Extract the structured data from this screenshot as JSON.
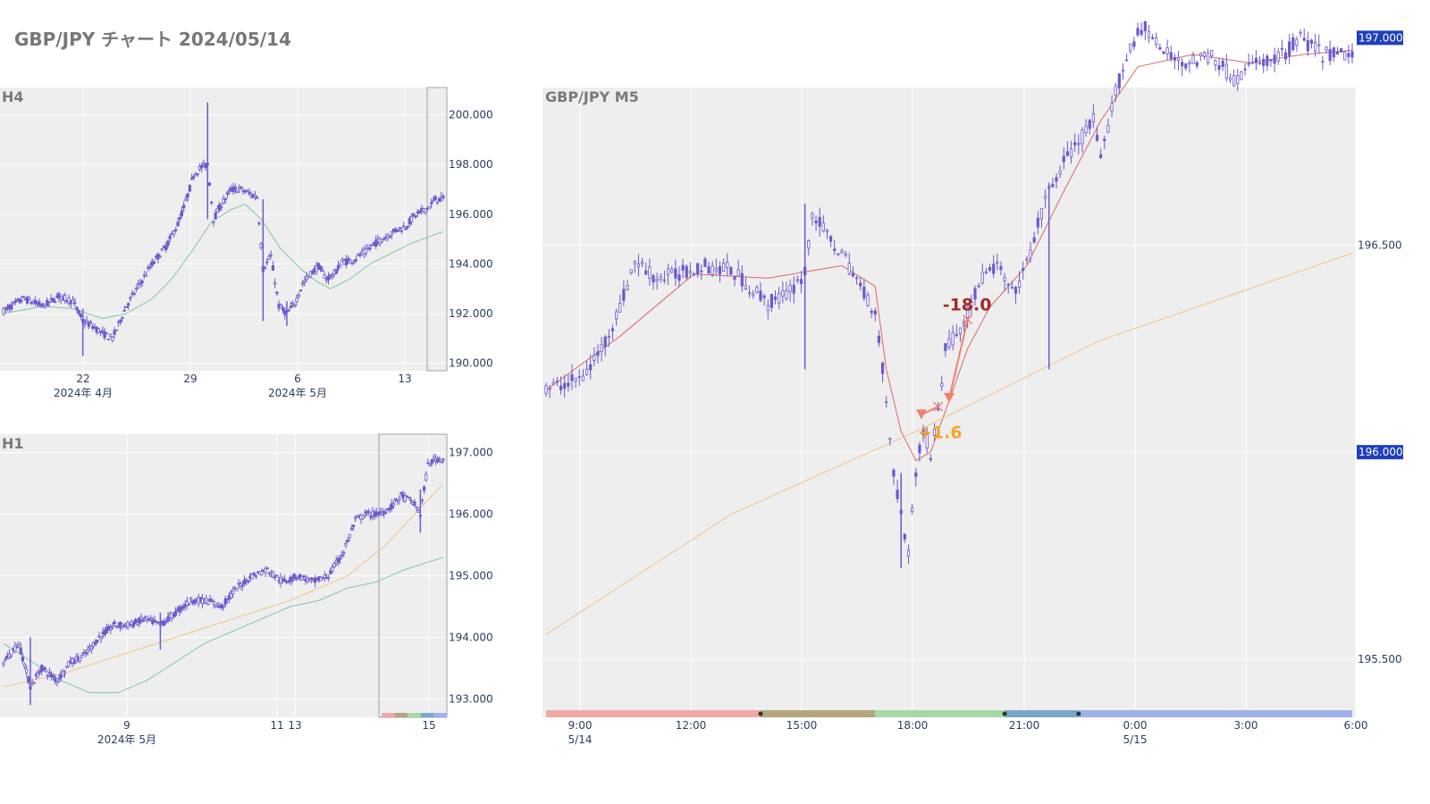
{
  "page": {
    "title": "GBP/JPY チャート 2024/05/14"
  },
  "colors": {
    "candle": "#6a5acd",
    "plot_bg": "#eeeeee",
    "grid": "#ffffff",
    "badge": "#1f3fbf",
    "ma_red": "#e06666",
    "ma_green": "#7fc6a4",
    "ma_orange": "#f2c28a",
    "trade_marker": "#f08070",
    "loss_text": "#a52a2a",
    "profit_text": "#f5a623"
  },
  "chart_data": [
    {
      "name": "h4-panel",
      "type": "candlestick",
      "title": "H4",
      "ylim": [
        189.7,
        201.1
      ],
      "y_ticks": [
        "190.000",
        "192.000",
        "194.000",
        "196.000",
        "198.000",
        "200.000"
      ],
      "x_ticks": [
        {
          "label": "22",
          "sub": "2024年 4月"
        },
        {
          "label": "29",
          "sub": ""
        },
        {
          "label": "6",
          "sub": "2024年 5月"
        },
        {
          "label": "13",
          "sub": ""
        }
      ],
      "path": [
        [
          0,
          192.1
        ],
        [
          10,
          192.6
        ],
        [
          20,
          192.3
        ],
        [
          28,
          192.7
        ],
        [
          35,
          192.5
        ],
        [
          40,
          191.7
        ],
        [
          45,
          191.5
        ],
        [
          50,
          191.2
        ],
        [
          55,
          191.0
        ],
        [
          62,
          192.3
        ],
        [
          68,
          193.1
        ],
        [
          75,
          194.0
        ],
        [
          82,
          194.7
        ],
        [
          88,
          195.6
        ],
        [
          92,
          196.5
        ],
        [
          96,
          197.6
        ],
        [
          100,
          197.9
        ],
        [
          103,
          198.0
        ],
        [
          106,
          195.8
        ],
        [
          110,
          196.4
        ],
        [
          115,
          197.0
        ],
        [
          120,
          197.0
        ],
        [
          125,
          196.8
        ],
        [
          128,
          196.7
        ],
        [
          131,
          193.8
        ],
        [
          135,
          194.3
        ],
        [
          139,
          192.3
        ],
        [
          143,
          192.0
        ],
        [
          147,
          192.4
        ],
        [
          151,
          193.2
        ],
        [
          155,
          193.6
        ],
        [
          159,
          193.9
        ],
        [
          163,
          193.4
        ],
        [
          167,
          193.6
        ],
        [
          171,
          194.1
        ],
        [
          175,
          194.1
        ],
        [
          179,
          194.3
        ],
        [
          183,
          194.5
        ],
        [
          187,
          194.8
        ],
        [
          191,
          195.0
        ],
        [
          195,
          195.2
        ],
        [
          199,
          195.4
        ],
        [
          203,
          195.5
        ],
        [
          207,
          195.9
        ],
        [
          211,
          196.1
        ],
        [
          215,
          196.3
        ],
        [
          218,
          196.6
        ],
        [
          222,
          196.6
        ]
      ],
      "spikes": [
        {
          "x": 103,
          "low": 195.8,
          "high": 200.5
        },
        {
          "x": 131,
          "low": 191.7,
          "high": 196.6
        },
        {
          "x": 40,
          "low": 190.3,
          "high": 192.2
        },
        {
          "x": 143,
          "low": 191.5,
          "high": 192.5
        }
      ],
      "ma": [
        {
          "color_key": "ma_green",
          "values": [
            [
              0,
              192.0
            ],
            [
              20,
              192.3
            ],
            [
              35,
              192.2
            ],
            [
              50,
              191.8
            ],
            [
              62,
              192.0
            ],
            [
              75,
              192.6
            ],
            [
              85,
              193.4
            ],
            [
              95,
              194.5
            ],
            [
              105,
              195.7
            ],
            [
              115,
              196.2
            ],
            [
              122,
              196.4
            ],
            [
              130,
              195.8
            ],
            [
              140,
              194.6
            ],
            [
              150,
              193.8
            ],
            [
              158,
              193.3
            ],
            [
              165,
              193.0
            ],
            [
              175,
              193.4
            ],
            [
              185,
              194.0
            ],
            [
              195,
              194.4
            ],
            [
              205,
              194.8
            ],
            [
              215,
              195.1
            ],
            [
              222,
              195.3
            ]
          ]
        }
      ],
      "n": 223
    },
    {
      "name": "h1-panel",
      "type": "candlestick",
      "title": "H1",
      "ylim": [
        192.7,
        197.3
      ],
      "y_ticks": [
        "193.000",
        "194.000",
        "195.000",
        "196.000",
        "197.000"
      ],
      "x_ticks": [
        {
          "label": "9",
          "sub": "2024年 5月"
        },
        {
          "label": "11",
          "sub": ""
        },
        {
          "label": "13",
          "sub": ""
        },
        {
          "label": "15",
          "sub": ""
        }
      ],
      "path": [
        [
          0,
          193.6
        ],
        [
          8,
          193.9
        ],
        [
          14,
          193.2
        ],
        [
          20,
          193.5
        ],
        [
          28,
          193.3
        ],
        [
          35,
          193.6
        ],
        [
          42,
          193.7
        ],
        [
          50,
          194.0
        ],
        [
          58,
          194.2
        ],
        [
          66,
          194.2
        ],
        [
          74,
          194.3
        ],
        [
          82,
          194.2
        ],
        [
          90,
          194.4
        ],
        [
          98,
          194.6
        ],
        [
          106,
          194.6
        ],
        [
          114,
          194.5
        ],
        [
          122,
          194.8
        ],
        [
          130,
          195.0
        ],
        [
          138,
          195.1
        ],
        [
          146,
          194.9
        ],
        [
          154,
          195.0
        ],
        [
          162,
          194.9
        ],
        [
          170,
          195.0
        ],
        [
          178,
          195.4
        ],
        [
          184,
          195.9
        ],
        [
          190,
          196.0
        ],
        [
          196,
          196.0
        ],
        [
          202,
          196.1
        ],
        [
          208,
          196.3
        ],
        [
          214,
          196.2
        ],
        [
          218,
          196.0
        ],
        [
          222,
          196.8
        ],
        [
          226,
          196.9
        ],
        [
          230,
          196.9
        ]
      ],
      "spikes": [
        {
          "x": 14,
          "low": 192.9,
          "high": 194.0
        },
        {
          "x": 82,
          "low": 193.8,
          "high": 194.4
        },
        {
          "x": 218,
          "low": 195.7,
          "high": 196.4
        }
      ],
      "ma": [
        {
          "color_key": "ma_orange",
          "values": [
            [
              0,
              193.2
            ],
            [
              30,
              193.4
            ],
            [
              60,
              193.7
            ],
            [
              90,
              194.0
            ],
            [
              120,
              194.3
            ],
            [
              150,
              194.6
            ],
            [
              180,
              195.0
            ],
            [
              200,
              195.5
            ],
            [
              215,
              196.0
            ],
            [
              230,
              196.5
            ]
          ]
        },
        {
          "color_key": "ma_green",
          "values": [
            [
              0,
              193.9
            ],
            [
              15,
              193.6
            ],
            [
              30,
              193.3
            ],
            [
              45,
              193.1
            ],
            [
              60,
              193.1
            ],
            [
              75,
              193.3
            ],
            [
              90,
              193.6
            ],
            [
              105,
              193.9
            ],
            [
              120,
              194.1
            ],
            [
              135,
              194.3
            ],
            [
              150,
              194.5
            ],
            [
              165,
              194.6
            ],
            [
              180,
              194.8
            ],
            [
              195,
              194.9
            ],
            [
              210,
              195.1
            ],
            [
              230,
              195.3
            ]
          ]
        }
      ],
      "n": 231
    },
    {
      "name": "m5-panel",
      "type": "candlestick",
      "title": "GBP/JPY M5",
      "ylim": [
        195.36,
        196.88
      ],
      "y_ticks": [
        "195.500",
        "196.000",
        "196.500",
        "197.000"
      ],
      "badges": [
        "197.000",
        "196.000"
      ],
      "x_ticks": [
        {
          "label": "9:00",
          "sub": "5/14"
        },
        {
          "label": "12:00",
          "sub": ""
        },
        {
          "label": "15:00",
          "sub": ""
        },
        {
          "label": "18:00",
          "sub": ""
        },
        {
          "label": "21:00",
          "sub": ""
        },
        {
          "label": "0:00",
          "sub": "5/15"
        },
        {
          "label": "3:00",
          "sub": ""
        },
        {
          "label": "6:00",
          "sub": ""
        }
      ],
      "path": [
        [
          0,
          196.15
        ],
        [
          10,
          196.18
        ],
        [
          15,
          196.25
        ],
        [
          20,
          196.35
        ],
        [
          24,
          196.46
        ],
        [
          30,
          196.42
        ],
        [
          36,
          196.43
        ],
        [
          42,
          196.45
        ],
        [
          50,
          196.44
        ],
        [
          55,
          196.4
        ],
        [
          60,
          196.36
        ],
        [
          65,
          196.38
        ],
        [
          70,
          196.43
        ],
        [
          72,
          196.58
        ],
        [
          76,
          196.52
        ],
        [
          80,
          196.48
        ],
        [
          85,
          196.4
        ],
        [
          89,
          196.34
        ],
        [
          91,
          196.2
        ],
        [
          94,
          195.95
        ],
        [
          96,
          195.85
        ],
        [
          98,
          195.76
        ],
        [
          100,
          195.95
        ],
        [
          102,
          196.05
        ],
        [
          104,
          196.0
        ],
        [
          106,
          196.1
        ],
        [
          108,
          196.25
        ],
        [
          112,
          196.3
        ],
        [
          116,
          196.38
        ],
        [
          118,
          196.42
        ],
        [
          122,
          196.45
        ],
        [
          126,
          196.38
        ],
        [
          130,
          196.45
        ],
        [
          132,
          196.52
        ],
        [
          136,
          196.63
        ],
        [
          140,
          196.7
        ],
        [
          144,
          196.75
        ],
        [
          148,
          196.8
        ],
        [
          150,
          196.7
        ],
        [
          154,
          196.87
        ],
        [
          158,
          196.98
        ],
        [
          162,
          197.03
        ],
        [
          166,
          196.97
        ],
        [
          170,
          196.95
        ],
        [
          175,
          196.94
        ],
        [
          180,
          196.96
        ],
        [
          186,
          196.9
        ],
        [
          192,
          196.94
        ],
        [
          198,
          196.95
        ],
        [
          204,
          197.0
        ],
        [
          210,
          196.96
        ],
        [
          218,
          196.96
        ]
      ],
      "spikes": [
        {
          "x": 70,
          "low": 196.2,
          "high": 196.6
        },
        {
          "x": 136,
          "low": 196.2,
          "high": 196.65
        },
        {
          "x": 96,
          "low": 195.72,
          "high": 195.95
        }
      ],
      "ma": [
        {
          "color_key": "ma_red",
          "values": [
            [
              0,
              196.15
            ],
            [
              20,
              196.28
            ],
            [
              40,
              196.43
            ],
            [
              60,
              196.42
            ],
            [
              80,
              196.45
            ],
            [
              89,
              196.4
            ],
            [
              92,
              196.2
            ],
            [
              96,
              196.05
            ],
            [
              100,
              195.98
            ],
            [
              104,
              196.0
            ],
            [
              108,
              196.1
            ],
            [
              114,
              196.25
            ],
            [
              120,
              196.35
            ],
            [
              130,
              196.45
            ],
            [
              140,
              196.63
            ],
            [
              150,
              196.8
            ],
            [
              160,
              196.93
            ],
            [
              175,
              196.96
            ],
            [
              190,
              196.94
            ],
            [
              205,
              196.96
            ],
            [
              218,
              196.97
            ]
          ]
        },
        {
          "color_key": "ma_orange",
          "values": [
            [
              0,
              195.56
            ],
            [
              50,
              195.85
            ],
            [
              100,
              196.05
            ],
            [
              150,
              196.27
            ],
            [
              218,
              196.48
            ]
          ]
        }
      ],
      "trades": [
        {
          "entry": [
            101.5,
            196.09
          ],
          "exit": [
            106,
            196.11
          ],
          "label": "+1.6",
          "kind": "profit"
        },
        {
          "entry": [
            109,
            196.13
          ],
          "exit": [
            114,
            196.32
          ],
          "label": "-18.0",
          "kind": "loss"
        }
      ],
      "sessions": [
        {
          "color": "#f0a8a8",
          "from": 0,
          "to": 58
        },
        {
          "color": "#b3a67d",
          "from": 58,
          "to": 89
        },
        {
          "color": "#a8d8a8",
          "from": 89,
          "to": 124
        },
        {
          "color": "#7aa8c8",
          "from": 124,
          "to": 144
        },
        {
          "color": "#a0b0ee",
          "from": 144,
          "to": 218
        }
      ],
      "n": 219
    }
  ]
}
